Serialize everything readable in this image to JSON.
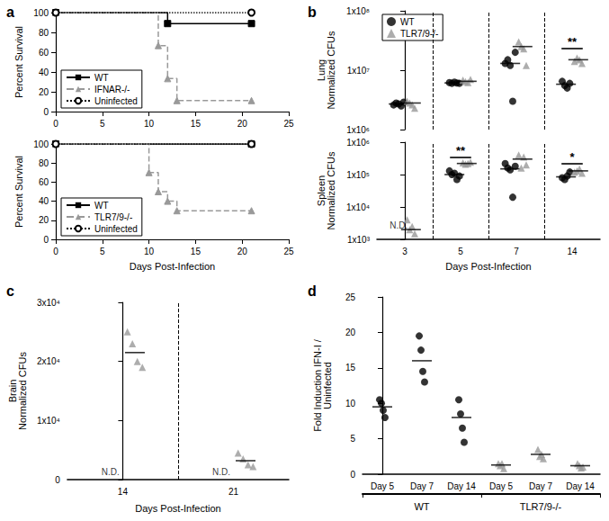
{
  "chart_data": [
    {
      "type": "step",
      "title": "a",
      "ylabel": "Percent Survival",
      "xlim": [
        0,
        25
      ],
      "xticks": [
        0,
        5,
        10,
        15,
        20,
        25
      ],
      "ylim": [
        0,
        100
      ],
      "yticks": [
        0,
        20,
        40,
        60,
        80,
        100
      ],
      "grid": false,
      "legend": "bottom-left",
      "series": [
        {
          "name": "WT",
          "color": "#000000",
          "marker": "square",
          "line_style": "solid",
          "x": [
            0,
            12,
            21
          ],
          "values": [
            100,
            88.9,
            88.9
          ]
        },
        {
          "name": "IFNAR-/-",
          "color": "#999999",
          "marker": "triangle",
          "line_style": "dashed",
          "x": [
            0,
            11,
            12,
            13,
            21
          ],
          "values": [
            100,
            66.7,
            33.3,
            11.1,
            11.1
          ]
        },
        {
          "name": "Uninfected",
          "color": "#000000",
          "marker": "open_circle",
          "line_style": "dotted",
          "x": [
            0,
            21
          ],
          "values": [
            100,
            100
          ]
        }
      ]
    },
    {
      "type": "step",
      "ylabel": "Percent Survival",
      "xlabel": "Days Post-Infection",
      "xlim": [
        0,
        25
      ],
      "xticks": [
        0,
        5,
        10,
        15,
        20,
        25
      ],
      "ylim": [
        0,
        100
      ],
      "yticks": [
        0,
        20,
        40,
        60,
        80,
        100
      ],
      "grid": false,
      "legend": "bottom-left",
      "series": [
        {
          "name": "WT",
          "color": "#000000",
          "marker": "square",
          "line_style": "solid",
          "x": [
            0,
            21
          ],
          "values": [
            100,
            100
          ]
        },
        {
          "name": "TLR7/9-/-",
          "color": "#999999",
          "marker": "triangle",
          "line_style": "dashed",
          "x": [
            0,
            10,
            11,
            12,
            13,
            21
          ],
          "values": [
            100,
            70,
            50,
            40,
            30,
            30
          ]
        },
        {
          "name": "Uninfected",
          "color": "#000000",
          "marker": "open_circle",
          "line_style": "dotted",
          "x": [
            0,
            21
          ],
          "values": [
            100,
            100
          ]
        }
      ]
    },
    {
      "type": "scatter",
      "title": "b",
      "ylabel": "Lung\nNormalized CFUs",
      "log": "y",
      "categories": [
        "3",
        "5",
        "7",
        "14"
      ],
      "ylim": [
        1000000,
        100000000
      ],
      "yticks": [
        {
          "value": 1000000,
          "label": "1x10⁶"
        },
        {
          "value": 10000000,
          "label": "1x10⁷"
        },
        {
          "value": 100000000,
          "label": "1x10⁸"
        }
      ],
      "grid": false,
      "legend": "top-left",
      "tick_labels": "y",
      "series": [
        {
          "name": "WT",
          "color": "#000000",
          "marker": "circle",
          "values": [
            [
              2600000,
              2800000,
              2700000,
              2500000,
              2900000
            ],
            [
              6200000,
              6000000,
              6300000,
              6100000,
              6000000
            ],
            [
              13000000,
              15000000,
              12000000,
              3000000,
              20000000
            ],
            [
              6500000,
              5500000,
              5000000,
              6000000
            ]
          ],
          "means": [
            2700000,
            6100000,
            13000000,
            5800000
          ]
        },
        {
          "name": "TLR7/9-/-",
          "color": "#999999",
          "marker": "triangle",
          "values": [
            [
              3000000,
              2800000,
              2600000,
              2300000
            ],
            [
              6800000,
              6400000,
              6200000,
              7000000
            ],
            [
              30000000,
              25000000,
              23000000,
              12000000
            ],
            [
              14000000,
              16000000,
              15000000,
              13000000
            ]
          ],
          "means": [
            2800000,
            6500000,
            25000000,
            15000000
          ]
        }
      ],
      "annotations": [
        {
          "category": "14",
          "text": "**"
        }
      ]
    },
    {
      "type": "scatter",
      "ylabel": "Spleen\nNormalized CFUs",
      "xlabel": "Days Post-Infection",
      "log": "y",
      "categories": [
        "3",
        "5",
        "7",
        "14"
      ],
      "ylim": [
        1000,
        1000000
      ],
      "yticks": [
        {
          "value": 1000,
          "label": "1x10³"
        },
        {
          "value": 10000,
          "label": "1x10⁴"
        },
        {
          "value": 100000,
          "label": "1x10⁵"
        },
        {
          "value": 1000000,
          "label": "1x10⁶"
        }
      ],
      "grid": false,
      "series": [
        {
          "color": "#000000",
          "marker": "circle",
          "values": [
            null,
            [
              130000,
              100000,
              110000,
              70000,
              90000
            ],
            [
              220000,
              160000,
              140000,
              20000,
              180000
            ],
            [
              80000,
              70000,
              90000,
              120000
            ]
          ],
          "means": [
            null,
            100000,
            150000,
            85000
          ]
        },
        {
          "color": "#999999",
          "marker": "triangle",
          "values": [
            [
              4000,
              2000,
              2500,
              1500
            ],
            [
              230000,
              210000,
              220000,
              240000
            ],
            [
              400000,
              160000,
              350000,
              200000
            ],
            [
              120000,
              130000,
              150000,
              110000
            ]
          ],
          "means": [
            2000,
            220000,
            300000,
            130000
          ]
        }
      ],
      "annotations": [
        {
          "category": "3",
          "series": 0,
          "text": "N.D."
        },
        {
          "category": "5",
          "text": "**"
        },
        {
          "category": "14",
          "text": "*"
        }
      ]
    },
    {
      "type": "scatter",
      "title": "c",
      "ylabel": "Brain\nNormalized CFUs",
      "xlabel": "Days Post-Infection",
      "categories": [
        "14",
        "21"
      ],
      "ylim": [
        0,
        30000
      ],
      "yticks": [
        0,
        {
          "value": 10000,
          "label": "1x10⁴"
        },
        {
          "value": 20000,
          "label": "2x10⁴"
        },
        {
          "value": 30000,
          "label": "3x10⁴"
        }
      ],
      "grid": false,
      "series": [
        {
          "color": "#000000",
          "marker": "circle",
          "values": [
            null,
            null
          ],
          "means": [
            null,
            null
          ]
        },
        {
          "color": "#999999",
          "marker": "triangle",
          "values": [
            [
              25000,
              23000,
              20000,
              19000
            ],
            [
              4500,
              3500,
              2500,
              2200
            ]
          ],
          "means": [
            21500,
            3200
          ]
        }
      ],
      "annotations": [
        {
          "category": "14",
          "series": 0,
          "text": "N.D."
        },
        {
          "category": "21",
          "series": 0,
          "text": "N.D."
        }
      ]
    },
    {
      "type": "scatter",
      "title": "d",
      "ylabel": "Fold Induction IFN-I /\nUninfected",
      "categories": [
        "Day 5",
        "Day 7",
        "Day 14"
      ],
      "ylim": [
        0,
        25
      ],
      "yticks": [
        0,
        5,
        10,
        15,
        20,
        25
      ],
      "grid": false,
      "groups": [
        {
          "label": "WT",
          "color": "#000000",
          "marker": "circle",
          "values": [
            [
              10.5,
              10,
              9,
              8
            ],
            [
              19.5,
              17.5,
              14.5,
              13
            ],
            [
              10.5,
              8.5,
              6.5,
              4.5
            ]
          ],
          "means": [
            9.5,
            16,
            8
          ]
        },
        {
          "label": "TLR7/9-/-",
          "color": "#999999",
          "marker": "triangle",
          "values": [
            [
              1.5,
              1.2,
              1.5,
              0.8
            ],
            [
              3.5,
              2.5,
              2.8,
              2.2
            ],
            [
              1.5,
              1.2,
              0.9,
              1.0
            ]
          ],
          "means": [
            1.3,
            2.8,
            1.2
          ]
        }
      ]
    }
  ]
}
